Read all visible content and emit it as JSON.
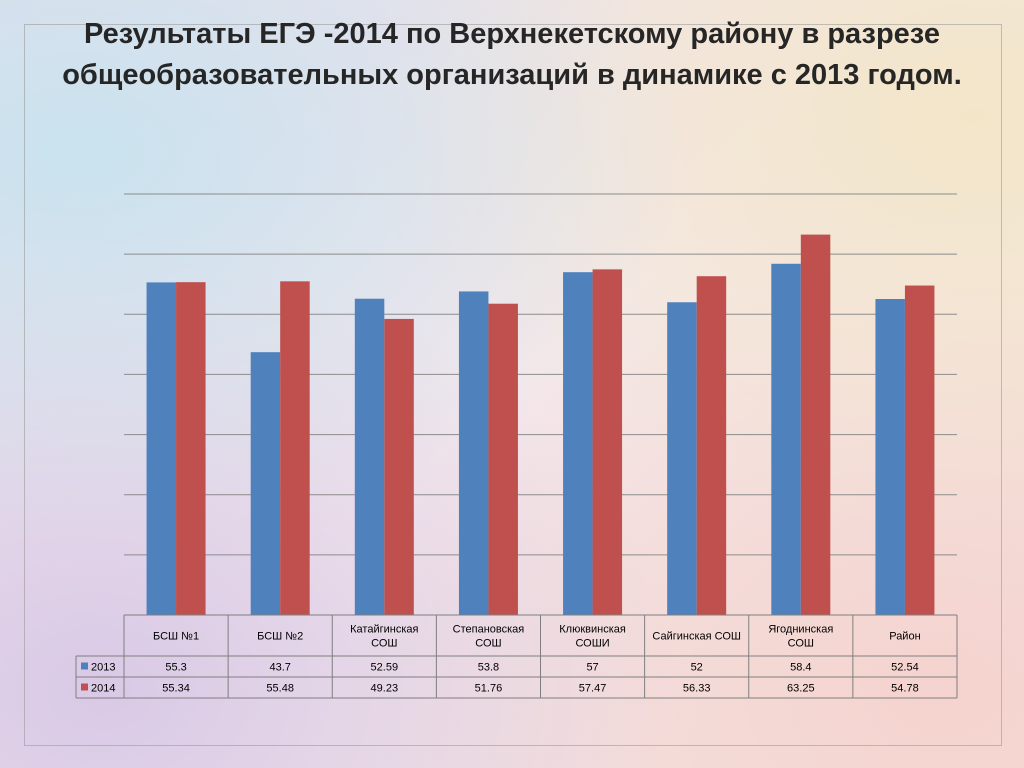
{
  "title": "Результаты ЕГЭ -2014  по Верхнекетскому району в разрезе общеобразовательных организаций в динамике с 2013 годом.",
  "chart_data": {
    "type": "bar",
    "categories": [
      [
        "БСШ №1"
      ],
      [
        "БСШ №2"
      ],
      [
        "Катайгинская",
        "СОШ"
      ],
      [
        "Степановская",
        "СОШ"
      ],
      [
        "Клюквинская",
        "СОШИ"
      ],
      [
        "Сайгинская СОШ"
      ],
      [
        "Ягоднинская",
        "СОШ"
      ],
      [
        "Район"
      ]
    ],
    "series": [
      {
        "name": "2013",
        "color": "#4f81bd",
        "values": [
          55.3,
          43.7,
          52.59,
          53.8,
          57,
          52,
          58.4,
          52.54
        ]
      },
      {
        "name": "2014",
        "color": "#c0504d",
        "values": [
          55.34,
          55.48,
          49.23,
          51.76,
          57.47,
          56.33,
          63.25,
          54.78
        ]
      }
    ],
    "ylim": [
      0,
      70
    ],
    "grid": true,
    "legend": "data-table"
  }
}
